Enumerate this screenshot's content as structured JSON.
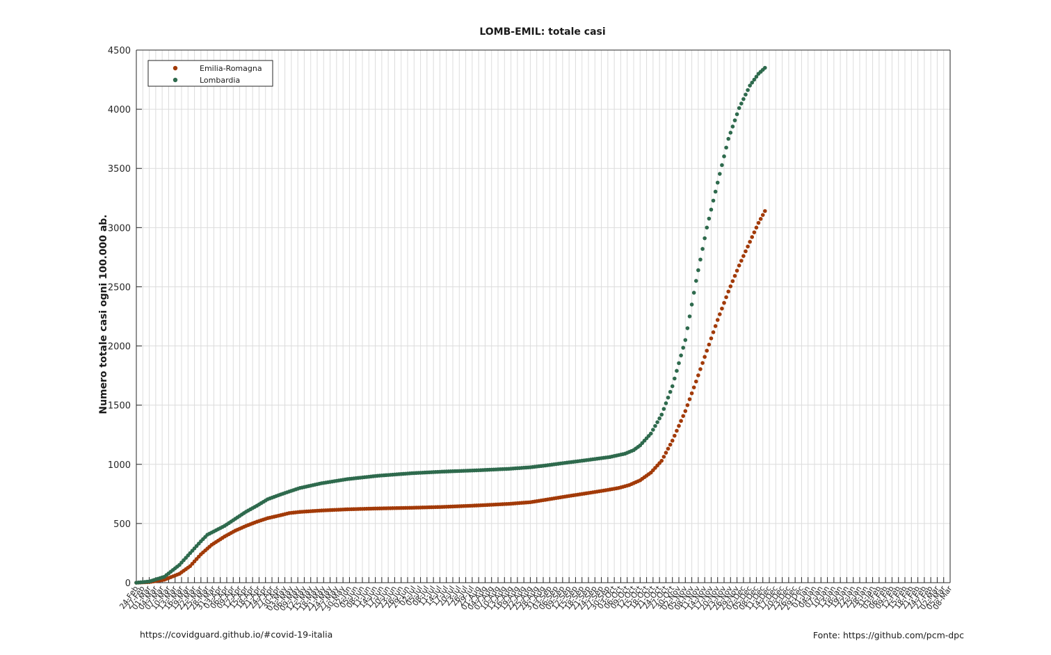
{
  "chart_data": {
    "type": "scatter",
    "title": "LOMB-EMIL: totale casi",
    "xlabel": "",
    "ylabel": "Numero totale casi ogni 100.000 ab.",
    "ylim": [
      0,
      4500
    ],
    "yticks": [
      0,
      500,
      1000,
      1500,
      2000,
      2500,
      3000,
      3500,
      4000,
      4500
    ],
    "x_axis": {
      "start_date": "2020-02-24",
      "end_date": "2021-03-08",
      "tick_every_days": 3,
      "label_format": "DD-Mon"
    },
    "month_names": [
      "Jan",
      "Feb",
      "Mar",
      "Apr",
      "May",
      "Jun",
      "Jul",
      "Aug",
      "Sep",
      "Oct",
      "Nov",
      "Dec"
    ],
    "grid": true,
    "legend": {
      "placement": "top-left"
    },
    "series": [
      {
        "name": "Emilia-Romagna",
        "color": "#a23a08",
        "date_start": "2020-02-24",
        "date_end": "2020-12-12",
        "points": [
          [
            "2020-02-24",
            0
          ],
          [
            "2020-03-01",
            5
          ],
          [
            "2020-03-08",
            25
          ],
          [
            "2020-03-15",
            75
          ],
          [
            "2020-03-20",
            140
          ],
          [
            "2020-03-25",
            240
          ],
          [
            "2020-03-30",
            320
          ],
          [
            "2020-04-05",
            390
          ],
          [
            "2020-04-10",
            440
          ],
          [
            "2020-04-15",
            480
          ],
          [
            "2020-04-20",
            515
          ],
          [
            "2020-04-25",
            545
          ],
          [
            "2020-05-01",
            570
          ],
          [
            "2020-05-05",
            588
          ],
          [
            "2020-05-10",
            598
          ],
          [
            "2020-05-20",
            610
          ],
          [
            "2020-06-01",
            620
          ],
          [
            "2020-06-15",
            627
          ],
          [
            "2020-07-01",
            633
          ],
          [
            "2020-07-15",
            640
          ],
          [
            "2020-08-01",
            653
          ],
          [
            "2020-08-15",
            666
          ],
          [
            "2020-08-25",
            680
          ],
          [
            "2020-09-01",
            700
          ],
          [
            "2020-09-10",
            727
          ],
          [
            "2020-09-20",
            755
          ],
          [
            "2020-09-28",
            778
          ],
          [
            "2020-10-05",
            800
          ],
          [
            "2020-10-10",
            825
          ],
          [
            "2020-10-15",
            865
          ],
          [
            "2020-10-20",
            930
          ],
          [
            "2020-10-25",
            1030
          ],
          [
            "2020-10-30",
            1200
          ],
          [
            "2020-11-05",
            1450
          ],
          [
            "2020-11-10",
            1700
          ],
          [
            "2020-11-15",
            1960
          ],
          [
            "2020-11-20",
            2220
          ],
          [
            "2020-11-25",
            2460
          ],
          [
            "2020-11-30",
            2680
          ],
          [
            "2020-12-05",
            2880
          ],
          [
            "2020-12-09",
            3040
          ],
          [
            "2020-12-12",
            3140
          ]
        ]
      },
      {
        "name": "Lombardia",
        "color": "#2e6a4d",
        "date_start": "2020-02-24",
        "date_end": "2020-12-12",
        "points": [
          [
            "2020-02-24",
            0
          ],
          [
            "2020-03-01",
            10
          ],
          [
            "2020-03-08",
            50
          ],
          [
            "2020-03-15",
            150
          ],
          [
            "2020-03-20",
            250
          ],
          [
            "2020-03-25",
            350
          ],
          [
            "2020-03-28",
            405
          ],
          [
            "2020-04-05",
            480
          ],
          [
            "2020-04-10",
            540
          ],
          [
            "2020-04-15",
            600
          ],
          [
            "2020-04-20",
            650
          ],
          [
            "2020-04-25",
            705
          ],
          [
            "2020-05-01",
            745
          ],
          [
            "2020-05-05",
            770
          ],
          [
            "2020-05-10",
            800
          ],
          [
            "2020-05-20",
            840
          ],
          [
            "2020-06-01",
            875
          ],
          [
            "2020-06-15",
            903
          ],
          [
            "2020-07-01",
            925
          ],
          [
            "2020-07-15",
            938
          ],
          [
            "2020-08-01",
            950
          ],
          [
            "2020-08-15",
            962
          ],
          [
            "2020-08-25",
            975
          ],
          [
            "2020-09-01",
            990
          ],
          [
            "2020-09-10",
            1012
          ],
          [
            "2020-09-20",
            1035
          ],
          [
            "2020-10-01",
            1062
          ],
          [
            "2020-10-08",
            1090
          ],
          [
            "2020-10-12",
            1120
          ],
          [
            "2020-10-15",
            1160
          ],
          [
            "2020-10-20",
            1260
          ],
          [
            "2020-10-25",
            1420
          ],
          [
            "2020-10-30",
            1660
          ],
          [
            "2020-11-05",
            2050
          ],
          [
            "2020-11-10",
            2550
          ],
          [
            "2020-11-15",
            3000
          ],
          [
            "2020-11-20",
            3380
          ],
          [
            "2020-11-25",
            3750
          ],
          [
            "2020-11-30",
            4010
          ],
          [
            "2020-12-05",
            4200
          ],
          [
            "2020-12-09",
            4300
          ],
          [
            "2020-12-12",
            4350
          ]
        ]
      }
    ]
  },
  "footer": {
    "left": "https://covidguard.github.io/#covid-19-italia",
    "right": "Fonte: https://github.com/pcm-dpc"
  }
}
